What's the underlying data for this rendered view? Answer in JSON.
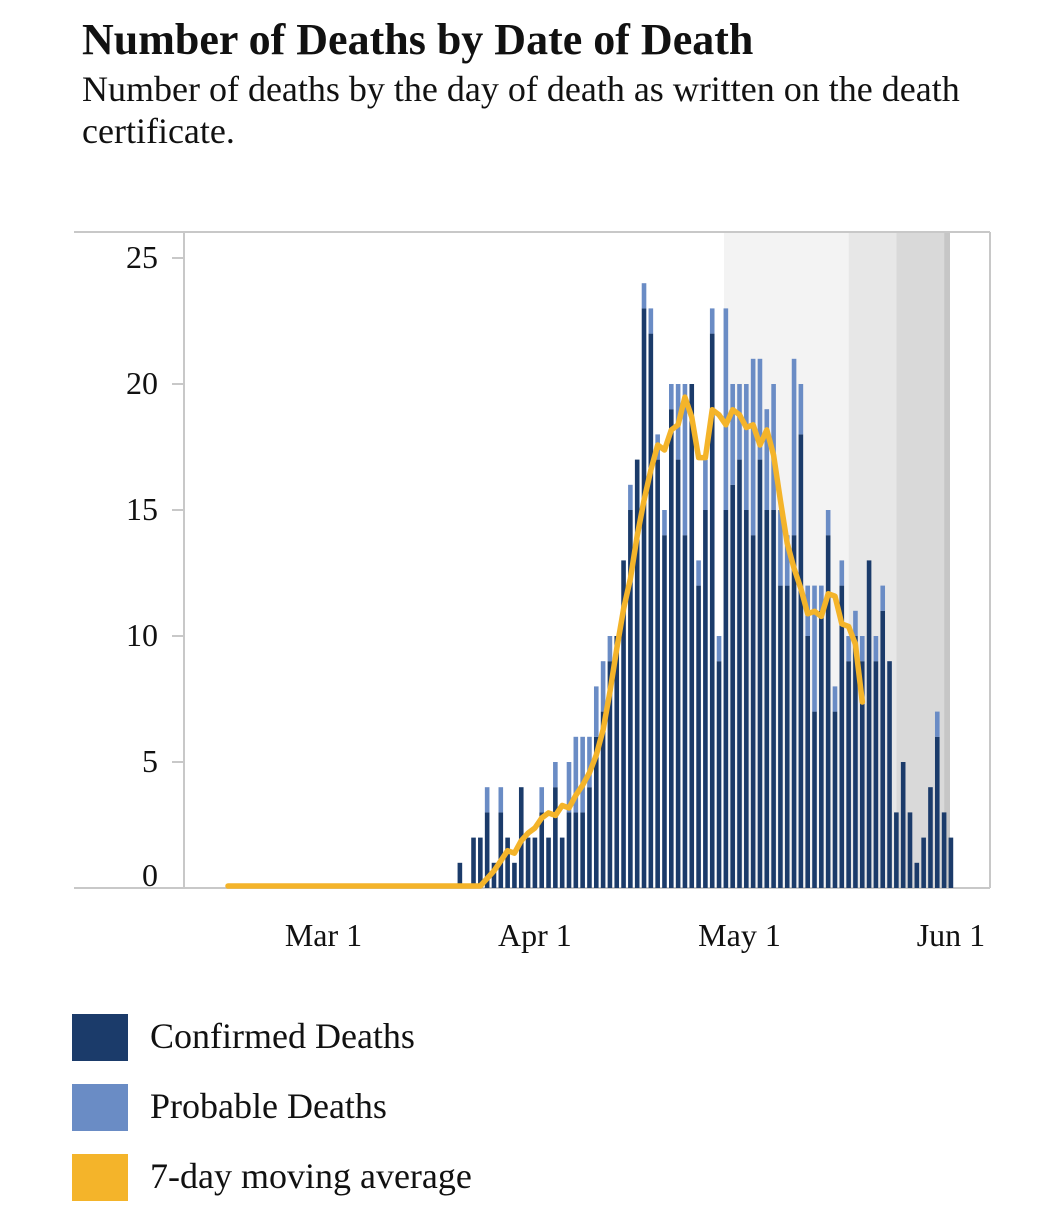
{
  "chart_data": {
    "type": "bar",
    "title": "Number of Deaths by Date of Death",
    "subtitle": "Number of deaths by the day of death as written on the death certificate.",
    "xlabel": "",
    "ylabel": "",
    "ylim": [
      0,
      25
    ],
    "yticks": [
      0,
      5,
      10,
      15,
      20,
      25
    ],
    "xticks": [
      {
        "label": "Mar 1",
        "day": 29
      },
      {
        "label": "Apr 1",
        "day": 60
      },
      {
        "label": "May 1",
        "day": 90
      },
      {
        "label": "Jun 1",
        "day": 121
      }
    ],
    "xlim_days": [
      15,
      125
    ],
    "start_date": "Feb 15",
    "bars_start_day": 49,
    "grid": false,
    "legend_position": "bottom",
    "incomplete_data_shading": {
      "start_days": [
        99,
        106,
        113,
        120,
        127
      ],
      "end_day": 125
    },
    "colors": {
      "confirmed": "#1b3b6a",
      "probable": "#6a8cc5",
      "moving_average": "#f4b42a",
      "axis": "#c8c8c8",
      "shading": [
        "#f3f3f3",
        "#e7e7e7",
        "#d9d9d9",
        "#c6c6c6",
        "#b5b5b5"
      ]
    },
    "series": [
      {
        "name": "Confirmed Deaths",
        "values": [
          1,
          0,
          2,
          2,
          3,
          1,
          3,
          2,
          1,
          4,
          2,
          2,
          3,
          2,
          4,
          2,
          3,
          3,
          3,
          4,
          6,
          7,
          9,
          10,
          13,
          15,
          17,
          23,
          22,
          17,
          14,
          19,
          17,
          14,
          20,
          12,
          15,
          22,
          9,
          15,
          16,
          17,
          15,
          14,
          17,
          15,
          15,
          12,
          12,
          14,
          18,
          10,
          7,
          11,
          14,
          7,
          12,
          9,
          10,
          9,
          13,
          9,
          11,
          9,
          3,
          5,
          3,
          1,
          2,
          4,
          6,
          3,
          2
        ]
      },
      {
        "name": "Probable Deaths",
        "values": [
          0,
          0,
          0,
          0,
          1,
          0,
          1,
          0,
          0,
          0,
          0,
          0,
          1,
          0,
          1,
          0,
          2,
          3,
          3,
          2,
          2,
          2,
          1,
          0,
          0,
          1,
          0,
          1,
          1,
          1,
          1,
          1,
          3,
          6,
          0,
          1,
          2,
          1,
          1,
          8,
          4,
          3,
          5,
          7,
          4,
          4,
          5,
          3,
          2,
          7,
          2,
          2,
          5,
          1,
          1,
          1,
          1,
          1,
          1,
          1,
          0,
          1,
          1,
          0,
          0,
          0,
          0,
          0,
          0,
          0,
          1,
          0,
          0
        ]
      },
      {
        "name": "7-day moving average",
        "start_day": 15,
        "values": [
          0,
          0,
          0,
          0,
          0,
          0,
          0,
          0,
          0,
          0,
          0,
          0,
          0,
          0,
          0,
          0,
          0,
          0,
          0,
          0,
          0,
          0,
          0,
          0,
          0,
          0,
          0,
          0,
          0,
          0,
          0,
          0,
          0,
          0,
          0,
          0,
          0,
          0,
          0.3,
          0.6,
          1.0,
          1.4,
          1.3,
          1.8,
          2.1,
          2.3,
          2.7,
          2.9,
          2.8,
          3.2,
          3.1,
          3.6,
          4.0,
          4.5,
          5.2,
          6.2,
          7.7,
          9.4,
          11.0,
          12.2,
          13.9,
          15.3,
          16.5,
          17.5,
          17.3,
          18.1,
          18.3,
          19.4,
          18.6,
          17.0,
          17.0,
          18.9,
          18.7,
          18.3,
          18.9,
          18.7,
          18.2,
          18.3,
          17.5,
          18.1,
          17.1,
          15.3,
          13.6,
          12.6,
          11.8,
          10.8,
          10.9,
          10.7,
          11.6,
          11.5,
          10.4,
          10.3,
          9.6,
          7.3
        ]
      }
    ]
  }
}
